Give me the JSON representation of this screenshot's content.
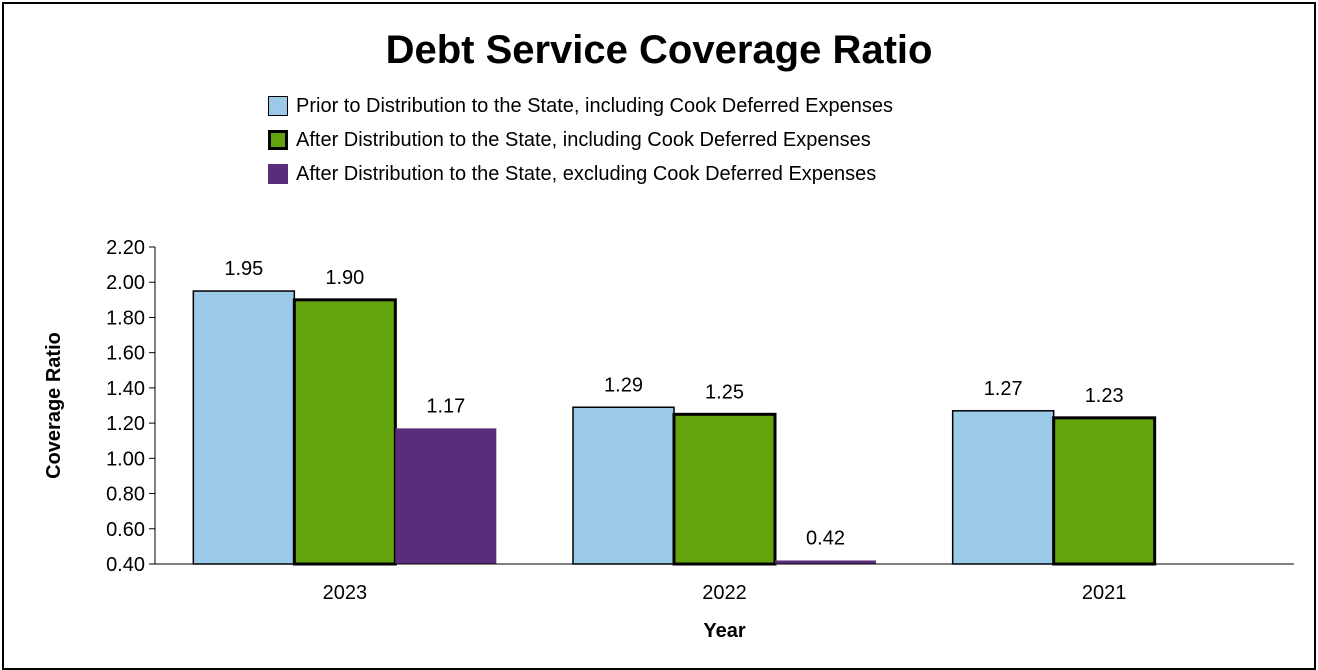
{
  "chart_data": {
    "type": "bar",
    "title": "Debt Service Coverage Ratio",
    "xlabel": "Year",
    "ylabel": "Coverage Ratio",
    "ylim": [
      0.4,
      2.2
    ],
    "yticks": [
      "0.40",
      "0.60",
      "0.80",
      "1.00",
      "1.20",
      "1.40",
      "1.60",
      "1.80",
      "2.00",
      "2.20"
    ],
    "categories": [
      "2023",
      "2022",
      "2021"
    ],
    "grid": false,
    "legend_position": "top",
    "series": [
      {
        "name": "Prior to Distribution to the State, including Cook Deferred Expenses",
        "color": "#9dc9e8",
        "outline": "#000000",
        "values": [
          1.95,
          1.29,
          1.27
        ],
        "labels": [
          "1.95",
          "1.29",
          "1.27"
        ]
      },
      {
        "name": "After Distribution to the State, including Cook Deferred Expenses",
        "color": "#62a30e",
        "outline": "#000000",
        "values": [
          1.9,
          1.25,
          1.23
        ],
        "labels": [
          "1.90",
          "1.25",
          "1.23"
        ]
      },
      {
        "name": "After Distribution to the State, excluding Cook Deferred Expenses",
        "color": "#5a2d7a",
        "outline": "#5a2d7a",
        "values": [
          1.17,
          0.42,
          null
        ],
        "labels": [
          "1.17",
          "0.42",
          ""
        ]
      }
    ]
  }
}
